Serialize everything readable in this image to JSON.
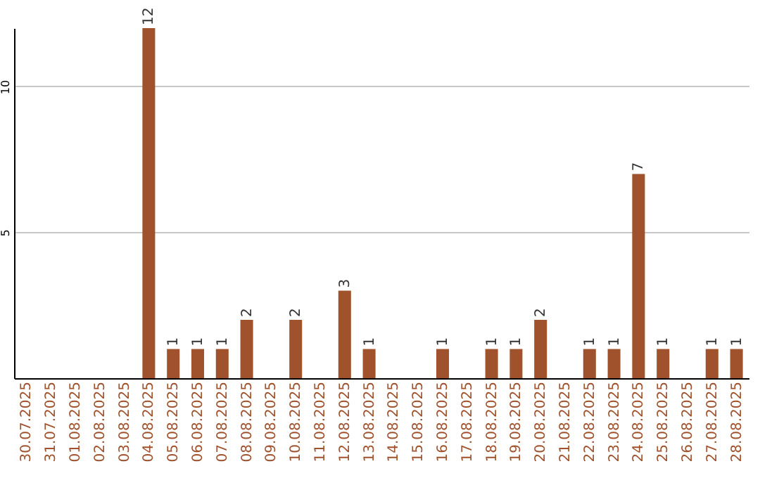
{
  "chart_data": {
    "type": "bar",
    "categories": [
      "30.07.2025",
      "31.07.2025",
      "01.08.2025",
      "02.08.2025",
      "03.08.2025",
      "04.08.2025",
      "05.08.2025",
      "06.08.2025",
      "07.08.2025",
      "08.08.2025",
      "09.08.2025",
      "10.08.2025",
      "11.08.2025",
      "12.08.2025",
      "13.08.2025",
      "14.08.2025",
      "15.08.2025",
      "16.08.2025",
      "17.08.2025",
      "18.08.2025",
      "19.08.2025",
      "20.08.2025",
      "21.08.2025",
      "22.08.2025",
      "23.08.2025",
      "24.08.2025",
      "25.08.2025",
      "26.08.2025",
      "27.08.2025",
      "28.08.2025"
    ],
    "values": [
      0,
      0,
      0,
      0,
      0,
      12,
      1,
      1,
      1,
      2,
      0,
      2,
      0,
      3,
      1,
      0,
      0,
      1,
      0,
      1,
      1,
      2,
      0,
      1,
      1,
      7,
      1,
      0,
      1,
      1
    ],
    "value_labels": [
      null,
      null,
      null,
      null,
      null,
      "12",
      "1",
      "1",
      "1",
      "2",
      null,
      "2",
      null,
      "3",
      "1",
      null,
      null,
      "1",
      null,
      "1",
      "1",
      "2",
      null,
      "1",
      "1",
      "7",
      "1",
      null,
      "1",
      "1"
    ],
    "color": "#a0522d",
    "ylim": [
      0,
      12
    ],
    "yticks": [
      5,
      10
    ],
    "grid": "y"
  }
}
